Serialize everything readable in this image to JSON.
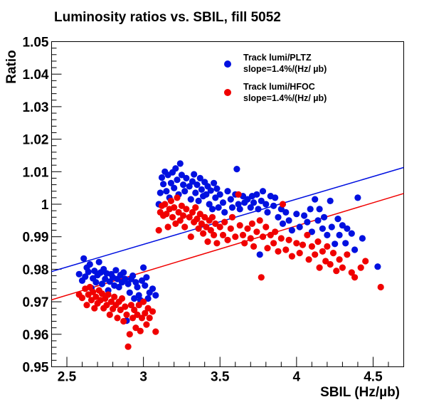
{
  "chart_data": {
    "type": "scatter",
    "title": "Luminosity ratios vs. SBIL, fill 5052",
    "xlabel": "SBIL (Hz/µb)",
    "ylabel": "Ratio",
    "xlim": [
      2.4,
      4.7
    ],
    "ylim": [
      0.95,
      1.05
    ],
    "x_ticks": [
      "2.5",
      "3",
      "3.5",
      "4",
      "4.5"
    ],
    "y_ticks": [
      "0.95",
      "0.96",
      "0.97",
      "0.98",
      "0.99",
      "1",
      "1.01",
      "1.02",
      "1.03",
      "1.04",
      "1.05"
    ],
    "legend_position": "top-right",
    "series": [
      {
        "name": "Track lumi/PLTZ",
        "subtitle": "slope=1.4%/(Hz/  µb)",
        "color": "#0010e0",
        "fit_line": [
          [
            2.4,
            0.9793
          ],
          [
            4.7,
            1.0113
          ]
        ],
        "points": [
          [
            2.58,
            0.9785
          ],
          [
            2.6,
            0.9765
          ],
          [
            2.61,
            0.9833
          ],
          [
            2.62,
            0.9777
          ],
          [
            2.63,
            0.9805
          ],
          [
            2.64,
            0.9792
          ],
          [
            2.65,
            0.9815
          ],
          [
            2.66,
            0.9742
          ],
          [
            2.67,
            0.9772
          ],
          [
            2.68,
            0.9795
          ],
          [
            2.69,
            0.976
          ],
          [
            2.7,
            0.9782
          ],
          [
            2.71,
            0.9822
          ],
          [
            2.72,
            0.979
          ],
          [
            2.73,
            0.9755
          ],
          [
            2.74,
            0.98
          ],
          [
            2.75,
            0.977
          ],
          [
            2.76,
            0.9787
          ],
          [
            2.77,
            0.9735
          ],
          [
            2.78,
            0.9762
          ],
          [
            2.79,
            0.9785
          ],
          [
            2.8,
            0.9775
          ],
          [
            2.81,
            0.975
          ],
          [
            2.82,
            0.9797
          ],
          [
            2.83,
            0.977
          ],
          [
            2.84,
            0.9745
          ],
          [
            2.85,
            0.9782
          ],
          [
            2.86,
            0.976
          ],
          [
            2.87,
            0.979
          ],
          [
            2.88,
            0.977
          ],
          [
            2.89,
            0.9642
          ],
          [
            2.9,
            0.9755
          ],
          [
            2.91,
            0.9728
          ],
          [
            2.92,
            0.977
          ],
          [
            2.93,
            0.978
          ],
          [
            2.94,
            0.971
          ],
          [
            2.95,
            0.976
          ],
          [
            2.96,
            0.9745
          ],
          [
            2.97,
            0.972
          ],
          [
            2.98,
            0.9705
          ],
          [
            2.99,
            0.9765
          ],
          [
            3.0,
            0.9805
          ],
          [
            3.01,
            0.975
          ],
          [
            3.02,
            0.9775
          ],
          [
            3.03,
            0.971
          ],
          [
            3.04,
            0.9728
          ],
          [
            3.06,
            0.974
          ],
          [
            3.08,
            0.972
          ],
          [
            3.1,
            1.0
          ],
          [
            3.11,
            1.0035
          ],
          [
            3.12,
            1.0082
          ],
          [
            3.13,
            1.0062
          ],
          [
            3.14,
            1.01
          ],
          [
            3.15,
            1.004
          ],
          [
            3.16,
            1.009
          ],
          [
            3.17,
            1.002
          ],
          [
            3.18,
            1.0065
          ],
          [
            3.19,
            1.0098
          ],
          [
            3.2,
            1.005
          ],
          [
            3.21,
            1.011
          ],
          [
            3.22,
            1.0075
          ],
          [
            3.23,
            1.003
          ],
          [
            3.24,
            1.0125
          ],
          [
            3.25,
            1.009
          ],
          [
            3.26,
            1.006
          ],
          [
            3.27,
            1.004
          ],
          [
            3.28,
            1.008
          ],
          [
            3.3,
            1.0055
          ],
          [
            3.31,
            1.0015
          ],
          [
            3.32,
            1.007
          ],
          [
            3.33,
            1.0092
          ],
          [
            3.34,
            1.0035
          ],
          [
            3.35,
            1.006
          ],
          [
            3.36,
            1.001
          ],
          [
            3.37,
            1.008
          ],
          [
            3.38,
            1.0045
          ],
          [
            3.39,
            1.0025
          ],
          [
            3.4,
            1.0068
          ],
          [
            3.41,
            1.003
          ],
          [
            3.42,
            1.0055
          ],
          [
            3.43,
            1.0
          ],
          [
            3.44,
            1.0042
          ],
          [
            3.45,
            0.9985
          ],
          [
            3.46,
            1.0065
          ],
          [
            3.47,
            1.002
          ],
          [
            3.48,
            1.0048
          ],
          [
            3.49,
            0.999
          ],
          [
            3.5,
            1.003
          ],
          [
            3.52,
            1.0005
          ],
          [
            3.53,
            0.9975
          ],
          [
            3.55,
            1.004
          ],
          [
            3.57,
            1.0015
          ],
          [
            3.58,
            0.999
          ],
          [
            3.6,
            1.003
          ],
          [
            3.61,
            1.0108
          ],
          [
            3.62,
            1.0
          ],
          [
            3.63,
            0.9985
          ],
          [
            3.65,
            1.0025
          ],
          [
            3.66,
            1.0005
          ],
          [
            3.68,
            1.0015
          ],
          [
            3.7,
            0.999
          ],
          [
            3.71,
            1.0025
          ],
          [
            3.72,
            1.0005
          ],
          [
            3.74,
            1.003
          ],
          [
            3.75,
            0.9985
          ],
          [
            3.76,
            0.9845
          ],
          [
            3.77,
            1.001
          ],
          [
            3.78,
            1.004
          ],
          [
            3.8,
            1.0
          ],
          [
            3.81,
            0.9975
          ],
          [
            3.83,
            1.0025
          ],
          [
            3.85,
            0.9995
          ],
          [
            3.86,
            1.002
          ],
          [
            3.88,
            0.996
          ],
          [
            3.9,
            0.9985
          ],
          [
            3.91,
            0.994
          ],
          [
            3.93,
            0.9975
          ],
          [
            3.95,
            0.995
          ],
          [
            3.97,
            0.992
          ],
          [
            4.0,
            0.997
          ],
          [
            4.02,
            0.993
          ],
          [
            4.05,
            0.9965
          ],
          [
            4.07,
            0.9945
          ],
          [
            4.09,
            0.9985
          ],
          [
            4.1,
            0.9915
          ],
          [
            4.12,
            1.0015
          ],
          [
            4.14,
            0.995
          ],
          [
            4.15,
            0.9985
          ],
          [
            4.17,
            0.9925
          ],
          [
            4.18,
            0.996
          ],
          [
            4.2,
            0.9905
          ],
          [
            4.22,
            1.001
          ],
          [
            4.23,
            0.993
          ],
          [
            4.25,
            0.9878
          ],
          [
            4.27,
            0.9955
          ],
          [
            4.28,
            0.9905
          ],
          [
            4.3,
            0.9935
          ],
          [
            4.32,
            0.988
          ],
          [
            4.33,
            0.9925
          ],
          [
            4.36,
            0.991
          ],
          [
            4.38,
            0.986
          ],
          [
            4.4,
            1.002
          ],
          [
            4.43,
            0.9895
          ],
          [
            4.53,
            0.9808
          ]
        ]
      },
      {
        "name": "Track lumi/HFOC",
        "subtitle": "slope=1.4%/(Hz/  µb)",
        "color": "#f00000",
        "fit_line": [
          [
            2.4,
            0.9706
          ],
          [
            4.7,
            1.0033
          ]
        ],
        "points": [
          [
            2.58,
            0.9722
          ],
          [
            2.6,
            0.9712
          ],
          [
            2.62,
            0.974
          ],
          [
            2.63,
            0.969
          ],
          [
            2.64,
            0.9722
          ],
          [
            2.65,
            0.9745
          ],
          [
            2.66,
            0.9705
          ],
          [
            2.67,
            0.973
          ],
          [
            2.68,
            0.968
          ],
          [
            2.69,
            0.9715
          ],
          [
            2.7,
            0.9695
          ],
          [
            2.71,
            0.9735
          ],
          [
            2.72,
            0.9705
          ],
          [
            2.73,
            0.9725
          ],
          [
            2.74,
            0.968
          ],
          [
            2.75,
            0.971
          ],
          [
            2.76,
            0.969
          ],
          [
            2.77,
            0.9722
          ],
          [
            2.78,
            0.966
          ],
          [
            2.79,
            0.97
          ],
          [
            2.8,
            0.9678
          ],
          [
            2.81,
            0.9715
          ],
          [
            2.82,
            0.969
          ],
          [
            2.83,
            0.965
          ],
          [
            2.84,
            0.97
          ],
          [
            2.85,
            0.9675
          ],
          [
            2.86,
            0.971
          ],
          [
            2.87,
            0.964
          ],
          [
            2.88,
            0.9685
          ],
          [
            2.89,
            0.966
          ],
          [
            2.9,
            0.9562
          ],
          [
            2.91,
            0.96
          ],
          [
            2.92,
            0.969
          ],
          [
            2.93,
            0.965
          ],
          [
            2.94,
            0.9675
          ],
          [
            2.95,
            0.962
          ],
          [
            2.96,
            0.966
          ],
          [
            2.97,
            0.969
          ],
          [
            2.98,
            0.961
          ],
          [
            2.99,
            0.965
          ],
          [
            3.0,
            0.97
          ],
          [
            3.01,
            0.9665
          ],
          [
            3.02,
            0.963
          ],
          [
            3.03,
            0.968
          ],
          [
            3.04,
            0.965
          ],
          [
            3.06,
            0.967
          ],
          [
            3.08,
            0.9608
          ],
          [
            3.1,
            0.992
          ],
          [
            3.11,
            0.9975
          ],
          [
            3.12,
            0.9995
          ],
          [
            3.13,
            0.9965
          ],
          [
            3.14,
            1.0
          ],
          [
            3.15,
            0.997
          ],
          [
            3.16,
            0.993
          ],
          [
            3.17,
            0.9985
          ],
          [
            3.18,
            1.001
          ],
          [
            3.19,
            0.996
          ],
          [
            3.2,
            0.999
          ],
          [
            3.21,
            0.994
          ],
          [
            3.22,
            1.002
          ],
          [
            3.23,
            0.9975
          ],
          [
            3.24,
            0.995
          ],
          [
            3.25,
            0.9995
          ],
          [
            3.26,
            0.9965
          ],
          [
            3.27,
            0.993
          ],
          [
            3.28,
            0.9985
          ],
          [
            3.3,
            0.996
          ],
          [
            3.31,
            0.99
          ],
          [
            3.32,
            0.9975
          ],
          [
            3.33,
            0.9945
          ],
          [
            3.34,
            0.999
          ],
          [
            3.35,
            0.9955
          ],
          [
            3.36,
            0.9925
          ],
          [
            3.37,
            0.997
          ],
          [
            3.38,
            0.994
          ],
          [
            3.39,
            0.991
          ],
          [
            3.4,
            0.996
          ],
          [
            3.41,
            0.993
          ],
          [
            3.42,
            0.9885
          ],
          [
            3.43,
            0.995
          ],
          [
            3.44,
            0.992
          ],
          [
            3.45,
            0.996
          ],
          [
            3.46,
            0.9905
          ],
          [
            3.47,
            0.994
          ],
          [
            3.48,
            0.988
          ],
          [
            3.5,
            0.993
          ],
          [
            3.52,
            0.9905
          ],
          [
            3.53,
            0.9945
          ],
          [
            3.55,
            0.989
          ],
          [
            3.57,
            0.9925
          ],
          [
            3.58,
            0.996
          ],
          [
            3.6,
            0.99
          ],
          [
            3.62,
            1.003
          ],
          [
            3.63,
            0.9935
          ],
          [
            3.65,
            0.9905
          ],
          [
            3.66,
            0.988
          ],
          [
            3.68,
            0.9925
          ],
          [
            3.7,
            0.9895
          ],
          [
            3.71,
            0.994
          ],
          [
            3.72,
            0.987
          ],
          [
            3.74,
            0.9915
          ],
          [
            3.76,
            0.995
          ],
          [
            3.77,
            0.9775
          ],
          [
            3.78,
            0.99
          ],
          [
            3.8,
            0.993
          ],
          [
            3.81,
            0.9865
          ],
          [
            3.83,
            0.9905
          ],
          [
            3.85,
            0.988
          ],
          [
            3.86,
            0.9915
          ],
          [
            3.88,
            0.9855
          ],
          [
            3.9,
            0.9895
          ],
          [
            3.91,
            1.0
          ],
          [
            3.93,
            0.986
          ],
          [
            3.95,
            0.989
          ],
          [
            3.97,
            0.984
          ],
          [
            4.0,
            0.988
          ],
          [
            4.02,
            0.985
          ],
          [
            4.04,
            0.9875
          ],
          [
            4.07,
            0.9905
          ],
          [
            4.08,
            0.983
          ],
          [
            4.1,
            0.987
          ],
          [
            4.12,
            0.9845
          ],
          [
            4.14,
            0.9885
          ],
          [
            4.15,
            0.9805
          ],
          [
            4.17,
            0.9855
          ],
          [
            4.19,
            0.9825
          ],
          [
            4.2,
            0.987
          ],
          [
            4.22,
            0.9815
          ],
          [
            4.24,
            0.985
          ],
          [
            4.26,
            0.9795
          ],
          [
            4.28,
            0.983
          ],
          [
            4.3,
            0.9805
          ],
          [
            4.33,
            0.9845
          ],
          [
            4.36,
            0.979
          ],
          [
            4.38,
            0.9775
          ],
          [
            4.42,
            0.9805
          ],
          [
            4.45,
            0.9825
          ],
          [
            4.55,
            0.9745
          ]
        ]
      }
    ]
  }
}
